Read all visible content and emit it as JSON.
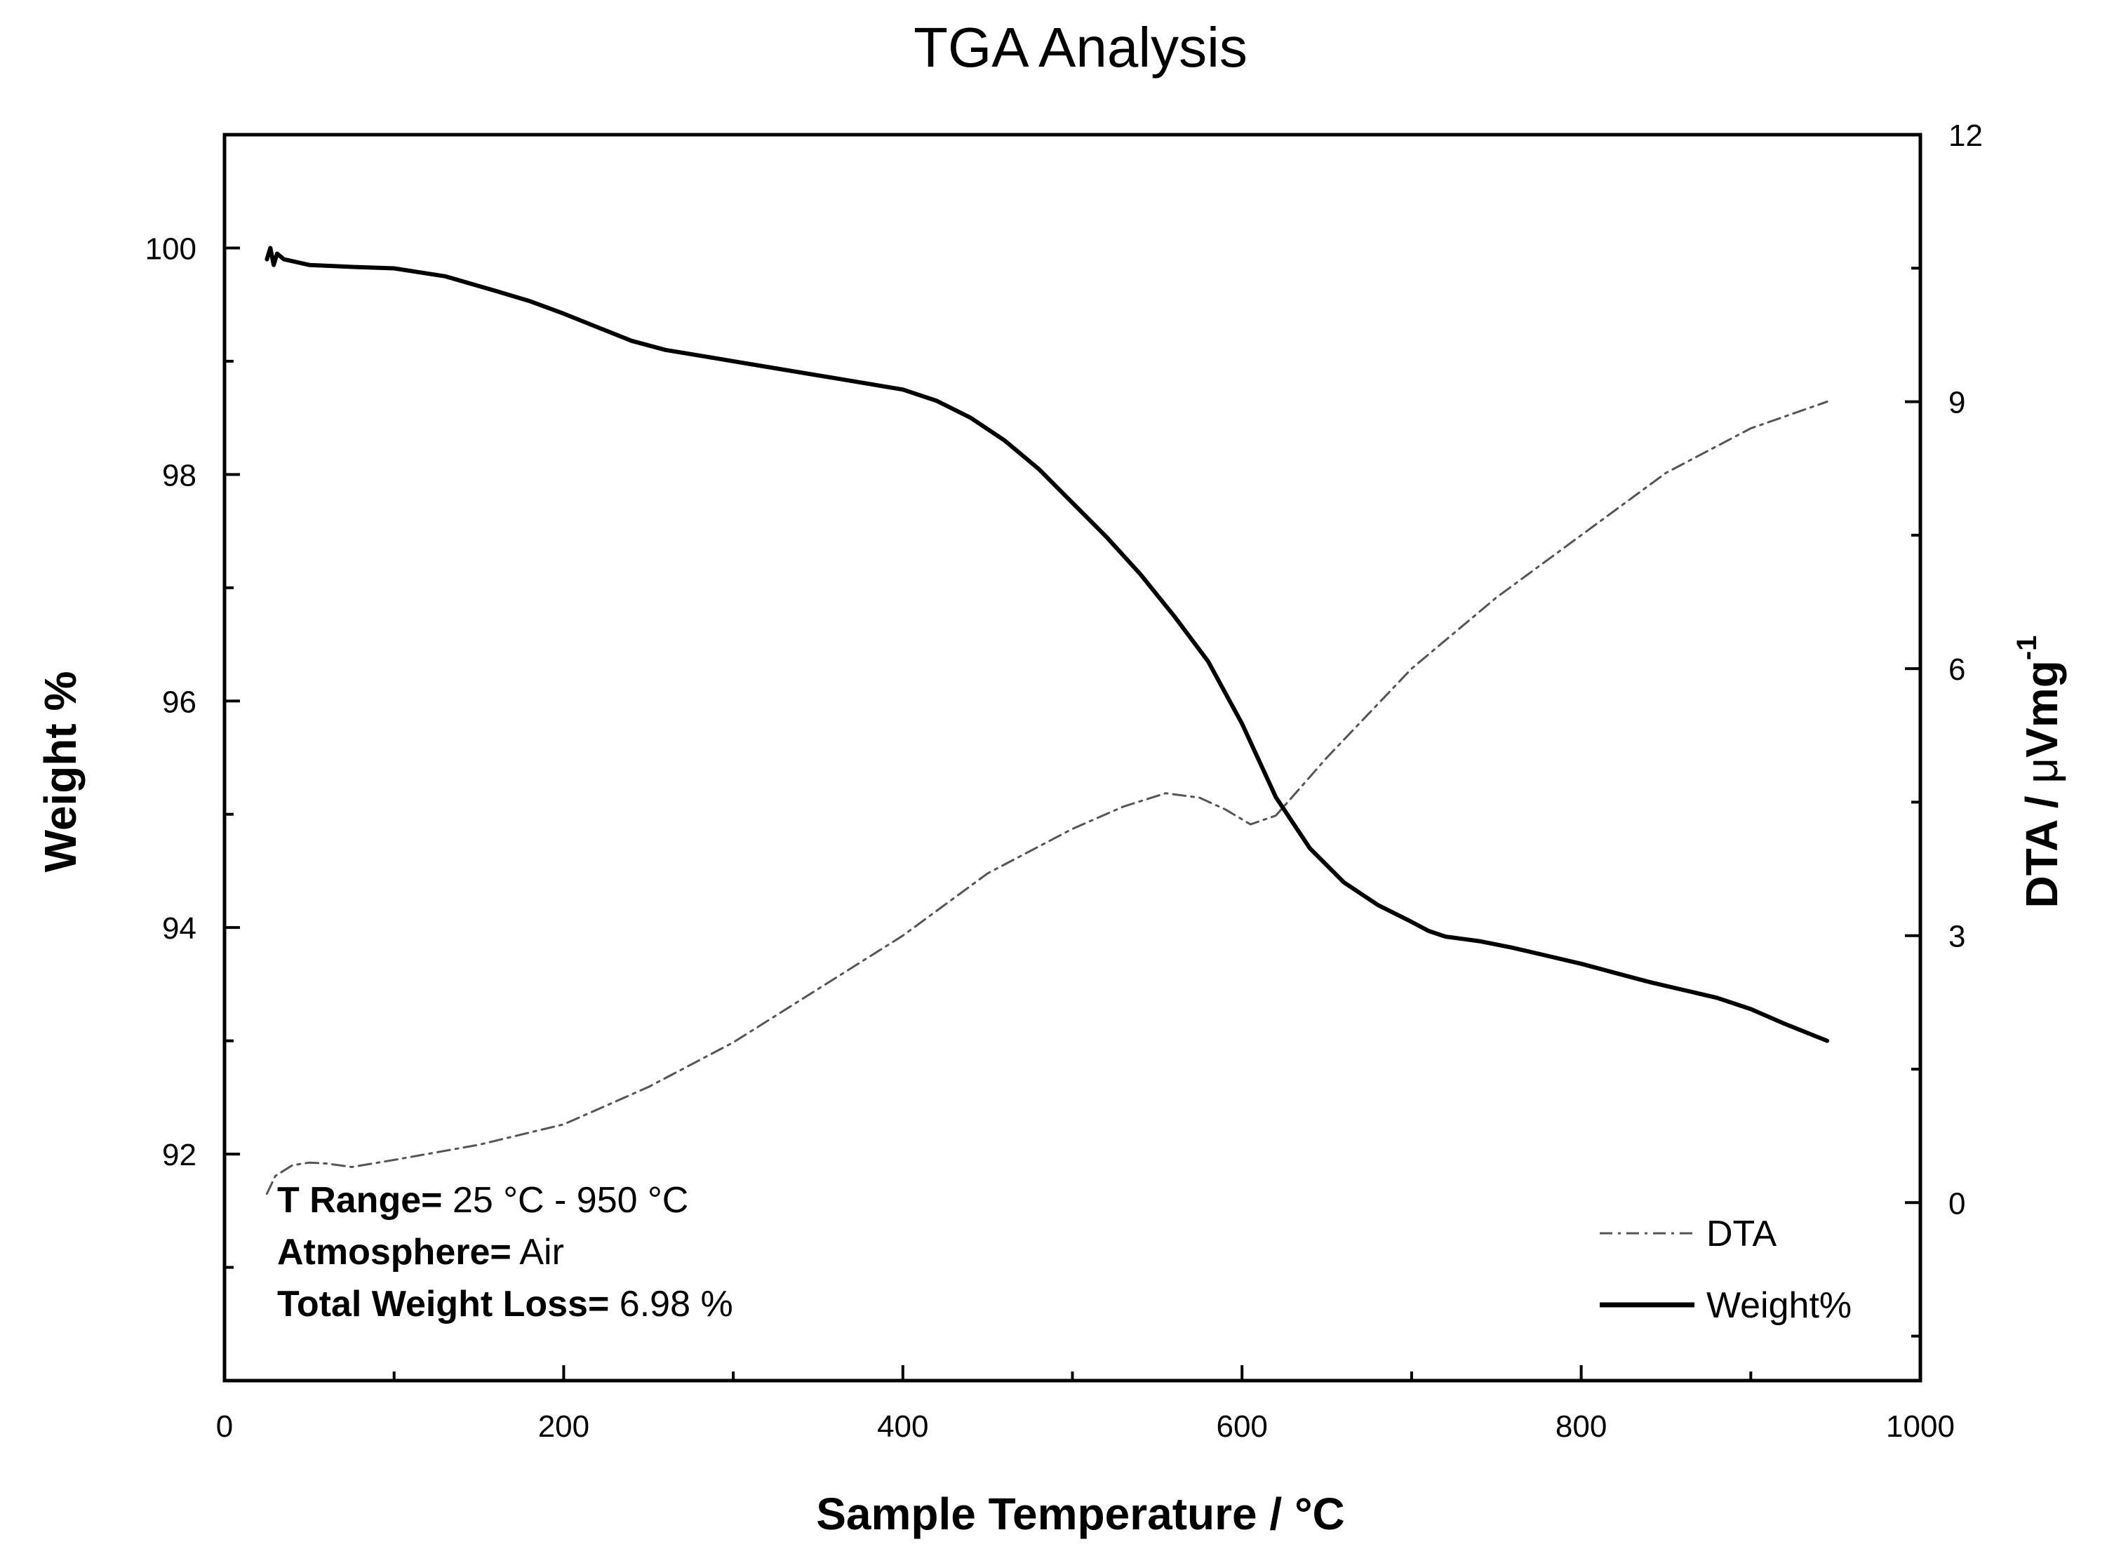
{
  "chart_data": {
    "type": "line",
    "title": "TGA Analysis",
    "xlabel": "Sample Temperature / °C",
    "ylabel": "Weight %",
    "y2label_main": "DTA / ",
    "y2label_mu": "μ",
    "y2label_unit": "Vmg",
    "y2label_exp": "-1",
    "xlim": [
      0,
      1000
    ],
    "ylim": [
      90,
      101
    ],
    "y2lim": [
      -2,
      12
    ],
    "x_ticks": [
      0,
      200,
      400,
      600,
      800,
      1000
    ],
    "x_tick_labels": [
      "0",
      "200",
      "400",
      "600",
      "800",
      "1000"
    ],
    "y_ticks": [
      92,
      94,
      96,
      98,
      100
    ],
    "y_tick_labels": [
      "92",
      "94",
      "96",
      "98",
      "100"
    ],
    "y2_ticks": [
      0,
      3,
      6,
      9,
      12
    ],
    "y2_tick_labels": [
      "0",
      "3",
      "6",
      "9",
      "12"
    ],
    "legend_position": "bottom-right",
    "series": [
      {
        "name": "DTA",
        "axis": "right",
        "style": "dash-dot",
        "color": "#555555",
        "x": [
          25,
          30,
          40,
          50,
          60,
          75,
          100,
          150,
          200,
          250,
          300,
          350,
          400,
          450,
          500,
          530,
          555,
          575,
          590,
          605,
          620,
          650,
          700,
          750,
          800,
          850,
          900,
          945
        ],
        "y": [
          0.1,
          0.3,
          0.42,
          0.45,
          0.44,
          0.4,
          0.48,
          0.65,
          0.88,
          1.3,
          1.8,
          2.4,
          3.0,
          3.7,
          4.2,
          4.45,
          4.6,
          4.55,
          4.42,
          4.25,
          4.35,
          5.0,
          6.0,
          6.8,
          7.5,
          8.2,
          8.7,
          9.0
        ]
      },
      {
        "name": "Weight%",
        "axis": "left",
        "style": "solid",
        "color": "#000000",
        "x": [
          25,
          27,
          29,
          31,
          35,
          50,
          80,
          100,
          130,
          160,
          180,
          200,
          220,
          240,
          260,
          280,
          300,
          320,
          340,
          360,
          380,
          400,
          420,
          440,
          460,
          480,
          500,
          520,
          540,
          560,
          580,
          600,
          620,
          640,
          660,
          680,
          700,
          710,
          720,
          730,
          740,
          760,
          780,
          800,
          820,
          840,
          860,
          880,
          900,
          920,
          945
        ],
        "y": [
          99.9,
          100.0,
          99.85,
          99.95,
          99.9,
          99.85,
          99.83,
          99.82,
          99.75,
          99.62,
          99.53,
          99.42,
          99.3,
          99.18,
          99.1,
          99.05,
          99.0,
          98.95,
          98.9,
          98.85,
          98.8,
          98.75,
          98.65,
          98.5,
          98.3,
          98.05,
          97.75,
          97.45,
          97.12,
          96.75,
          96.35,
          95.8,
          95.15,
          94.7,
          94.4,
          94.2,
          94.05,
          93.97,
          93.92,
          93.9,
          93.88,
          93.82,
          93.75,
          93.68,
          93.6,
          93.52,
          93.45,
          93.38,
          93.28,
          93.15,
          93.0
        ]
      }
    ],
    "annotations": [
      {
        "key": "T Range=",
        "value": " 25 °C - 950 °C"
      },
      {
        "key": "Atmosphere=",
        "value": " Air"
      },
      {
        "key": "Total Weight Loss=",
        "value": " 6.98 %"
      }
    ]
  }
}
